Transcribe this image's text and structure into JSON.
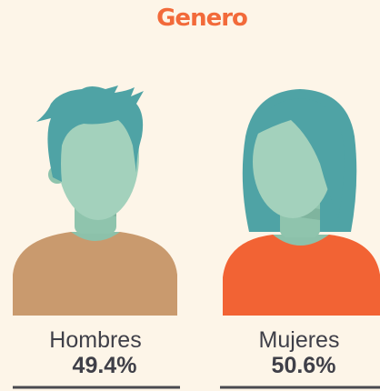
{
  "title": "Genero",
  "items": [
    {
      "label": "Hombres",
      "value": "49.4%"
    },
    {
      "label": "Mujeres",
      "value": "50.6%"
    }
  ]
}
